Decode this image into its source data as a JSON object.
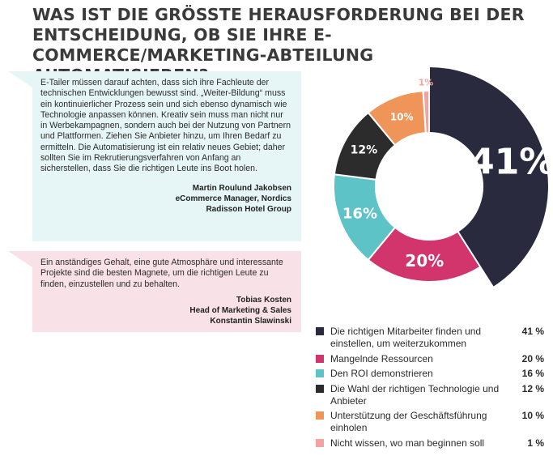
{
  "title": "WAS IST DIE GRÖSSTE HERAUSFORDERUNG BEI DER ENTSCHEIDUNG, OB SIE IHRE E-COMMERCE/MARKETING-ABTEILUNG AUTOMATISIEREN?",
  "quotes": [
    {
      "text": "E-Tailer müssen darauf achten, dass sich ihre Fachleute der technischen Entwicklungen bewusst sind. „Weiter-Bildung“ muss ein kontinuierlicher Prozess sein und sich ebenso dynamisch wie Technologie anpassen können. Kreativ sein muss man nicht nur in Werbekampagnen, sondern auch bei der Nutzung von Partnern und Plattformen. Ziehen Sie Anbieter hinzu, um Ihren Bedarf zu ermitteln. Die Automatisierung ist ein relativ neues Gebiet; daher sollten Sie im Rekrutierungsverfahren von Anfang an sicherstellen, dass Sie die richtigen Leute ins Boot holen.",
      "author": "Martin Roulund Jakobsen",
      "role": "eCommerce Manager, Nordics",
      "company": "Radisson Hotel Group"
    },
    {
      "text": "Ein anständiges Gehalt, eine gute Atmosphäre und interessante Projekte sind die besten Magnete, um die richtigen Leute zu finden, einzustellen und zu behalten.",
      "author": "Tobias Kosten",
      "role": "Head of Marketing & Sales",
      "company": "Konstantin Slawinski"
    }
  ],
  "chart_data": {
    "type": "pie",
    "variant": "donut",
    "categories": [
      "Die richtigen Mitarbeiter finden und einstellen, um weiterzukommen",
      "Mangelnde Ressourcen",
      "Den ROI demonstrieren",
      "Die Wahl der richtigen Technologie und Anbieter",
      "Unterstützung der Geschäftsführung einholen",
      "Nicht wissen, wo man beginnen soll"
    ],
    "values": [
      41,
      20,
      16,
      12,
      10,
      1
    ],
    "slice_labels": [
      "41%",
      "20%",
      "16%",
      "12%",
      "10%",
      "1%"
    ],
    "legend_values": [
      "41 %",
      "20 %",
      "16 %",
      "12 %",
      "10 %",
      "1 %"
    ],
    "colors": [
      "#2a2a3e",
      "#d1356b",
      "#5ec3c6",
      "#2c2c2c",
      "#f0955a",
      "#f4a3a3"
    ],
    "legend_position": "bottom-right"
  }
}
